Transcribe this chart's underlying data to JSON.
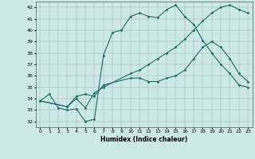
{
  "xlabel": "Humidex (Indice chaleur)",
  "background_color": "#cce8e8",
  "grid_color": "#aaaaaa",
  "line_color": "#1a6b6b",
  "xlim": [
    -0.5,
    23.5
  ],
  "ylim": [
    31.5,
    42.5
  ],
  "xticks": [
    0,
    1,
    2,
    3,
    4,
    5,
    6,
    7,
    8,
    9,
    10,
    11,
    12,
    13,
    14,
    15,
    16,
    17,
    18,
    19,
    20,
    21,
    22,
    23
  ],
  "yticks": [
    32,
    33,
    34,
    35,
    36,
    37,
    38,
    39,
    40,
    41,
    42
  ],
  "line1_x": [
    0,
    1,
    2,
    3,
    4,
    5,
    6,
    7,
    8,
    9,
    10,
    11,
    12,
    13,
    14,
    15,
    16,
    17,
    18,
    19,
    20,
    21,
    22,
    23
  ],
  "line1_y": [
    33.8,
    34.4,
    33.2,
    33.0,
    33.1,
    32.0,
    32.2,
    37.8,
    39.8,
    40.0,
    41.2,
    41.5,
    41.2,
    41.1,
    41.8,
    42.2,
    41.2,
    40.5,
    39.1,
    38.0,
    37.0,
    36.2,
    35.2,
    35.0
  ],
  "line2_x": [
    0,
    3,
    4,
    5,
    6,
    7,
    10,
    11,
    12,
    13,
    14,
    15,
    16,
    17,
    18,
    19,
    20,
    21,
    22,
    23
  ],
  "line2_y": [
    33.8,
    33.3,
    34.2,
    34.4,
    34.2,
    35.2,
    35.8,
    35.8,
    35.5,
    35.5,
    35.8,
    36.0,
    36.5,
    37.5,
    38.5,
    39.0,
    38.5,
    37.5,
    36.2,
    35.5
  ],
  "line3_x": [
    0,
    3,
    4,
    5,
    6,
    7,
    10,
    11,
    12,
    13,
    14,
    15,
    16,
    17,
    18,
    19,
    20,
    21,
    22,
    23
  ],
  "line3_y": [
    33.8,
    33.3,
    34.0,
    33.2,
    34.5,
    35.0,
    36.2,
    36.5,
    37.0,
    37.5,
    38.0,
    38.5,
    39.2,
    40.0,
    40.8,
    41.5,
    42.0,
    42.2,
    41.8,
    41.5
  ]
}
